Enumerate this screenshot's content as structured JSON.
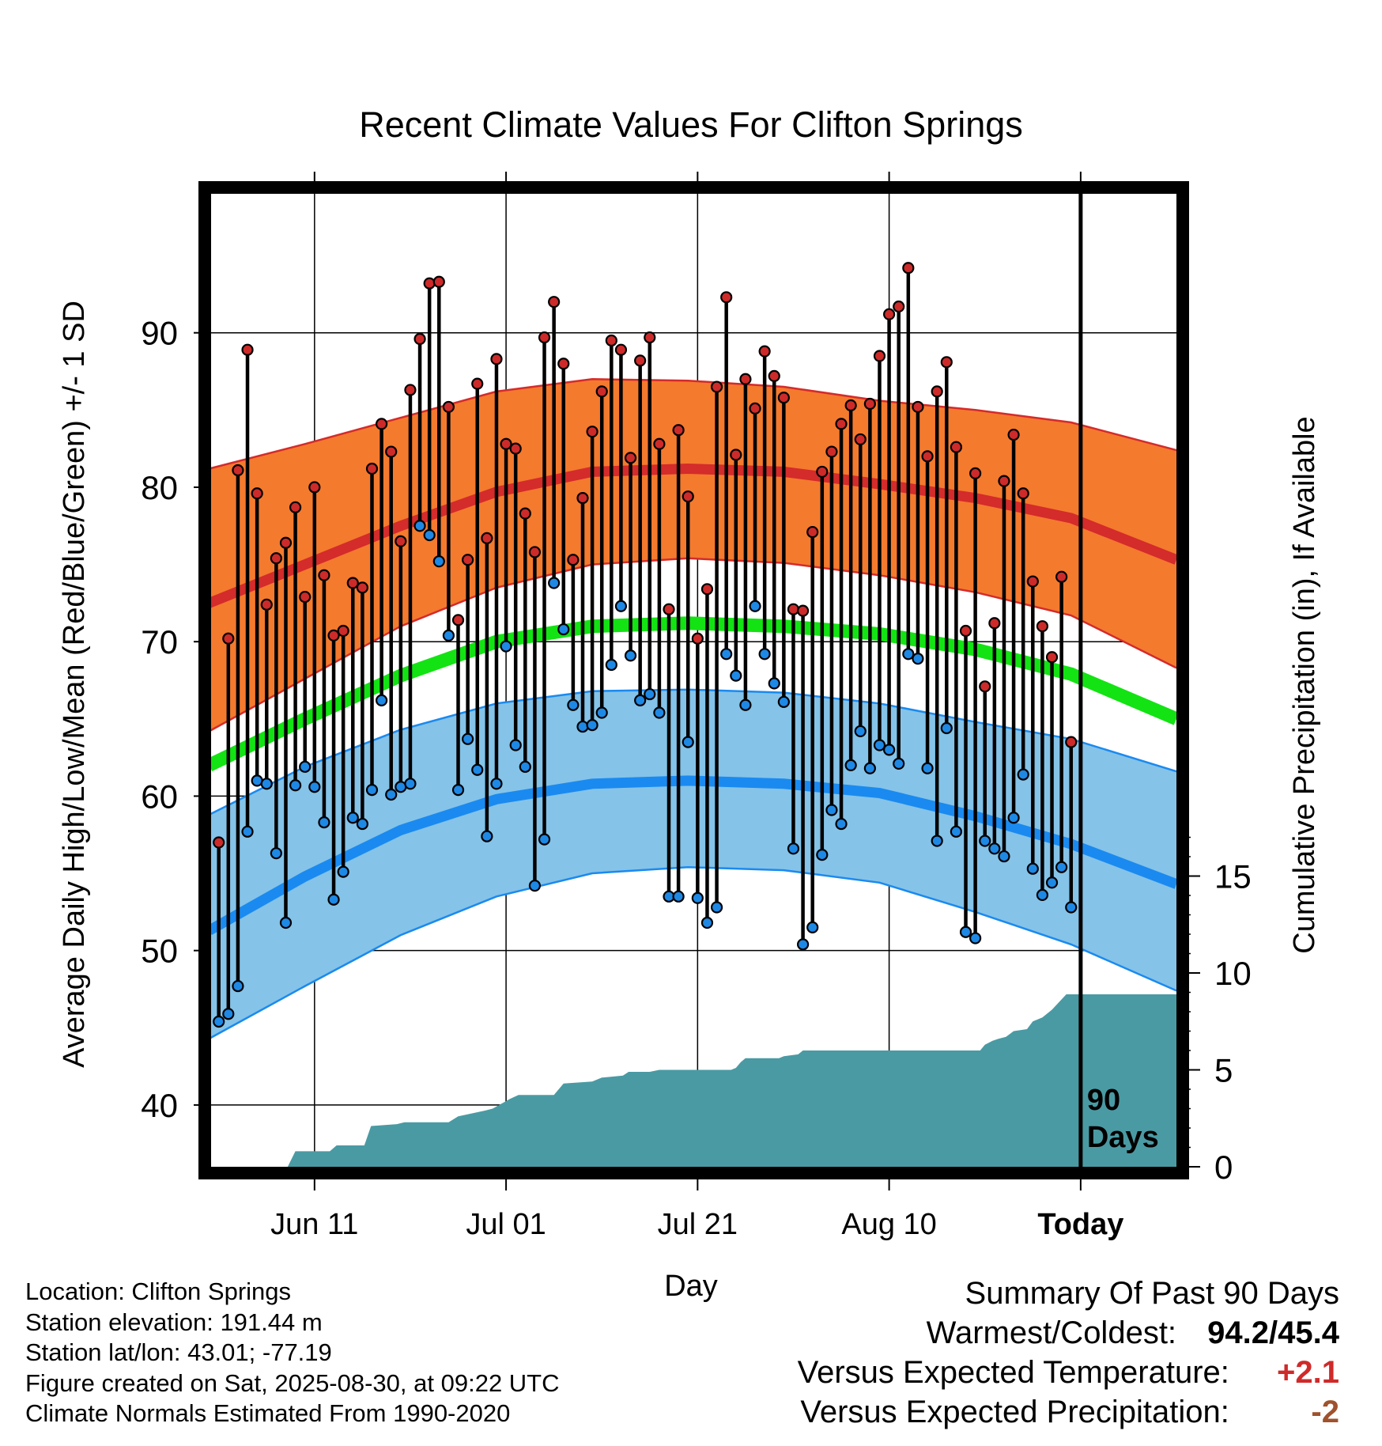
{
  "chart_data": {
    "type": "line",
    "title": "Recent Climate Values For Clifton Springs",
    "xlabel": "Day",
    "ylabel": "Average Daily High/Low/Mean (Red/Blue/Green) +/- 1 SD",
    "y2label": "Cumulative Precipitation (in), If Available",
    "ylim": [
      36,
      99
    ],
    "y2lim": [
      0,
      20
    ],
    "y_ticks": [
      "40",
      "50",
      "60",
      "70",
      "80",
      "90"
    ],
    "y2_ticks": [
      "0",
      "5",
      "10",
      "15"
    ],
    "x_tick_labels": [
      "Jun 11",
      "Jul 01",
      "Jul 21",
      "Aug 10",
      "Today"
    ],
    "x_tick_days": [
      11,
      31,
      51,
      71,
      91
    ],
    "xlim": [
      0.2,
      101
    ],
    "grid": true,
    "today_marker_label": "90 Days",
    "normals": {
      "days": [
        0,
        10,
        20,
        30,
        40,
        50,
        60,
        70,
        80,
        90,
        101
      ],
      "high_mean": [
        72.5,
        75.0,
        77.5,
        79.7,
        81.0,
        81.2,
        81.0,
        80.2,
        79.3,
        78.0,
        75.3
      ],
      "high_sd_upper": [
        81.2,
        82.8,
        84.5,
        86.2,
        87.0,
        86.9,
        86.5,
        85.6,
        85.0,
        84.2,
        82.4
      ],
      "high_sd_lower": [
        64.2,
        67.6,
        71.0,
        73.5,
        75.0,
        75.4,
        75.1,
        74.3,
        73.2,
        71.7,
        68.3
      ],
      "daily_mean": [
        62.0,
        65.0,
        67.8,
        70.0,
        71.0,
        71.2,
        71.0,
        70.5,
        69.5,
        67.9,
        65.0
      ],
      "low_mean": [
        51.3,
        54.8,
        57.8,
        59.8,
        60.8,
        61.0,
        60.8,
        60.2,
        58.7,
        56.9,
        54.3
      ],
      "low_sd_upper": [
        58.8,
        61.9,
        64.3,
        66.0,
        66.8,
        66.9,
        66.7,
        66.0,
        64.8,
        63.7,
        61.6
      ],
      "low_sd_lower": [
        44.3,
        47.7,
        51.0,
        53.5,
        55.0,
        55.4,
        55.2,
        54.4,
        52.5,
        50.4,
        47.4
      ]
    },
    "daily_observations": {
      "days": [
        1,
        2,
        3,
        4,
        5,
        6,
        7,
        8,
        9,
        10,
        11,
        12,
        13,
        14,
        15,
        16,
        17,
        18,
        19,
        20,
        21,
        22,
        23,
        24,
        25,
        26,
        27,
        28,
        29,
        30,
        31,
        32,
        33,
        34,
        35,
        36,
        37,
        38,
        39,
        40,
        41,
        42,
        43,
        44,
        45,
        46,
        47,
        48,
        49,
        50,
        51,
        52,
        53,
        54,
        55,
        56,
        57,
        58,
        59,
        60,
        61,
        62,
        63,
        64,
        65,
        66,
        67,
        68,
        69,
        70,
        71,
        72,
        73,
        74,
        75,
        76,
        77,
        78,
        79,
        80,
        81,
        82,
        83,
        84,
        85,
        86,
        87,
        88,
        89,
        90
      ],
      "high": [
        57.0,
        70.2,
        81.1,
        88.9,
        79.6,
        72.4,
        75.4,
        76.4,
        78.7,
        72.9,
        80.0,
        74.3,
        70.4,
        70.7,
        73.8,
        73.5,
        81.2,
        84.1,
        82.3,
        76.5,
        86.3,
        89.6,
        93.2,
        93.3,
        85.2,
        71.4,
        75.3,
        86.7,
        76.7,
        88.3,
        82.8,
        82.5,
        78.3,
        75.8,
        89.7,
        92.0,
        88.0,
        75.3,
        79.3,
        83.6,
        86.2,
        89.5,
        88.9,
        81.9,
        88.2,
        89.7,
        82.8,
        72.1,
        83.7,
        79.4,
        70.2,
        73.4,
        86.5,
        92.3,
        82.1,
        87.0,
        85.1,
        88.8,
        87.2,
        85.8,
        72.1,
        72.0,
        77.1,
        81.0,
        82.3,
        84.1,
        85.3,
        83.1,
        85.4,
        88.5,
        91.2,
        91.7,
        94.2,
        85.2,
        82.0,
        86.2,
        88.1,
        82.6,
        70.7,
        80.9,
        67.1,
        71.2,
        80.4,
        83.4,
        79.6,
        73.9,
        71.0,
        69.0,
        74.2,
        63.5
      ],
      "low": [
        45.4,
        45.9,
        47.7,
        57.7,
        61.0,
        60.8,
        56.3,
        51.8,
        60.7,
        61.9,
        60.6,
        58.3,
        53.3,
        55.1,
        58.6,
        58.2,
        60.4,
        66.2,
        60.1,
        60.6,
        60.8,
        77.5,
        76.9,
        75.2,
        70.4,
        60.4,
        63.7,
        61.7,
        57.4,
        60.8,
        69.7,
        63.3,
        61.9,
        54.2,
        57.2,
        73.8,
        70.8,
        65.9,
        64.5,
        64.6,
        65.4,
        68.5,
        72.3,
        69.1,
        66.2,
        66.6,
        65.4,
        53.5,
        53.5,
        63.5,
        53.4,
        51.8,
        52.8,
        69.2,
        67.8,
        65.9,
        72.3,
        69.2,
        67.3,
        66.1,
        56.6,
        50.4,
        51.5,
        56.2,
        59.1,
        58.2,
        62.0,
        64.2,
        61.8,
        63.3,
        63.0,
        62.1,
        69.2,
        68.9,
        61.8,
        57.1,
        64.4,
        57.7,
        51.2,
        50.8,
        57.1,
        56.6,
        56.1,
        58.6,
        61.4,
        55.3,
        53.6,
        54.4,
        55.4,
        52.8
      ]
    },
    "cumulative_precipitation": {
      "days": [
        0.2,
        8.2,
        9.0,
        12.6,
        13.3,
        16.2,
        16.9,
        19.6,
        20.4,
        25.0,
        26.0,
        28.8,
        29.6,
        31.4,
        32.3,
        36.0,
        37.0,
        40.0,
        41.0,
        43.2,
        43.8,
        46.0,
        47.0,
        54.5,
        55.0,
        55.5,
        56.0,
        59.5,
        60.0,
        61.5,
        62.0,
        80.5,
        81.0,
        81.8,
        82.4,
        83.2,
        84.0,
        85.4,
        86.0,
        87.0,
        88.0,
        89.5,
        101.0
      ],
      "values": [
        0.0,
        0.0,
        0.8,
        0.8,
        1.1,
        1.1,
        2.1,
        2.2,
        2.3,
        2.3,
        2.6,
        2.9,
        3.0,
        3.5,
        3.7,
        3.7,
        4.3,
        4.4,
        4.6,
        4.7,
        4.9,
        4.9,
        5.0,
        5.0,
        5.1,
        5.4,
        5.6,
        5.6,
        5.7,
        5.8,
        6.0,
        6.0,
        6.3,
        6.5,
        6.6,
        6.7,
        7.0,
        7.1,
        7.5,
        7.7,
        8.1,
        8.9,
        8.9
      ]
    },
    "colors": {
      "high_sd_band": "#f47a2e",
      "high_line": "#d42b2b",
      "mean_line": "#13e313",
      "low_sd_band": "#85c3e8",
      "low_line": "#1a8af0",
      "precip_fill": "#4a9aa3",
      "high_marker": "#cd2a2a",
      "low_marker": "#1e88e5"
    }
  },
  "info": {
    "location": "Location: Clifton Springs",
    "elevation": "Station elevation: 191.44 m",
    "latlon": "Station lat/lon: 43.01; -77.19",
    "created": "Figure created on Sat, 2025-08-30, at 09:22 UTC",
    "normals": "Climate Normals Estimated From 1990-2020"
  },
  "summary": {
    "title": "Summary Of Past 90 Days",
    "warmest_coldest_label": "Warmest/Coldest:",
    "warmest_coldest_value": "94.2/45.4",
    "temp_label": "Versus Expected Temperature:",
    "temp_value": "+2.1",
    "temp_color": "#cf2a2a",
    "precip_label": "Versus Expected Precipitation:",
    "precip_value": "-2",
    "precip_color": "#a0522d"
  }
}
